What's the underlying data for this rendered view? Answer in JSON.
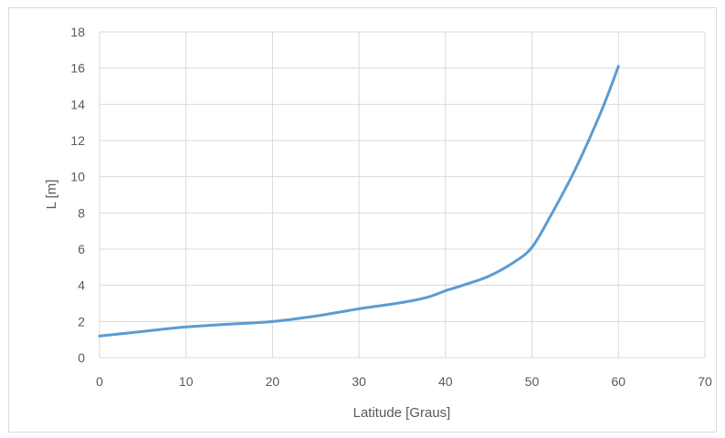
{
  "chart_data": {
    "type": "line",
    "title": "",
    "xlabel": "Latitude [Graus]",
    "ylabel": "L [m]",
    "xlim": [
      0,
      70
    ],
    "ylim": [
      0,
      18
    ],
    "xticks": [
      0,
      10,
      20,
      30,
      40,
      50,
      60,
      70
    ],
    "yticks": [
      0,
      2,
      4,
      6,
      8,
      10,
      12,
      14,
      16,
      18
    ],
    "grid": true,
    "legend": "none",
    "series": [
      {
        "color": "#5b9bd5",
        "x": [
          0,
          5,
          10,
          15,
          20,
          25,
          30,
          35,
          38,
          40,
          42,
          45,
          48,
          50,
          52,
          55,
          58,
          60
        ],
        "y": [
          1.2,
          1.45,
          1.7,
          1.85,
          2.0,
          2.3,
          2.7,
          3.05,
          3.35,
          3.7,
          4.0,
          4.5,
          5.3,
          6.1,
          7.7,
          10.4,
          13.6,
          16.1
        ]
      }
    ]
  }
}
